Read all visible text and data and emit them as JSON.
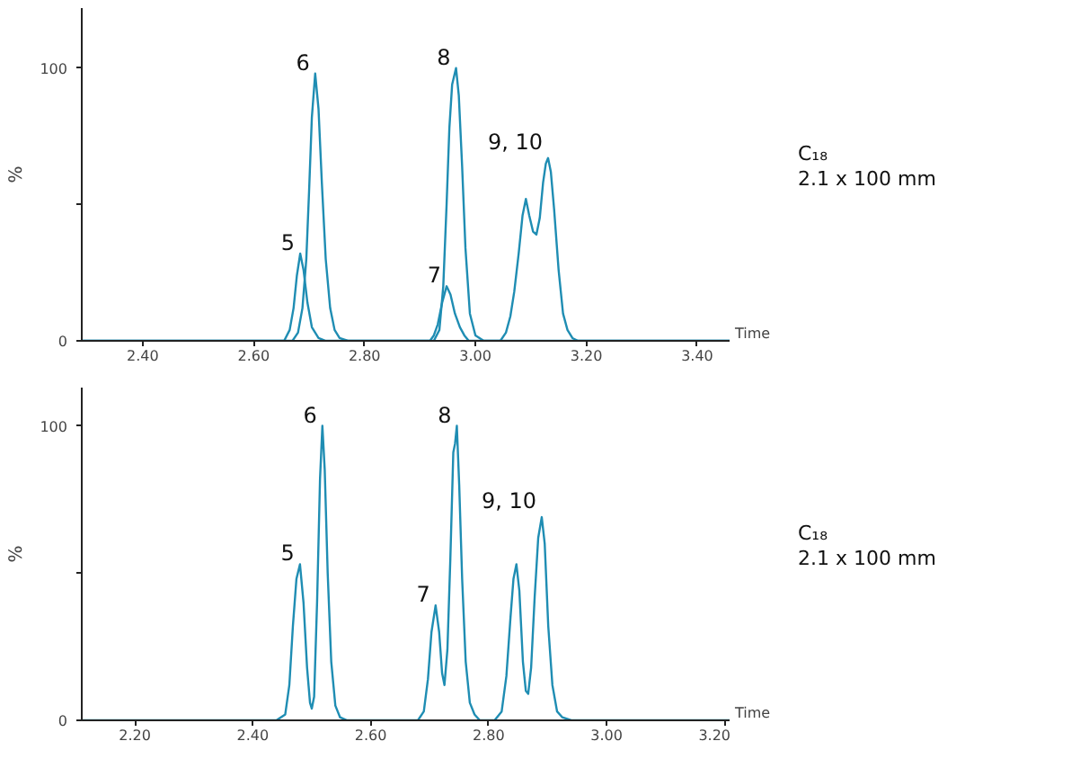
{
  "chart_data": [
    {
      "type": "line",
      "xlabel": "Time",
      "ylabel": "%",
      "xlim": [
        2.29,
        3.46
      ],
      "ylim": [
        0,
        122
      ],
      "xticks": [
        {
          "value": 2.4,
          "label": "2.40"
        },
        {
          "value": 2.6,
          "label": "2.60"
        },
        {
          "value": 2.8,
          "label": "2.80"
        },
        {
          "value": 3.0,
          "label": "3.00"
        },
        {
          "value": 3.2,
          "label": "3.20"
        },
        {
          "value": 3.4,
          "label": "3.40"
        }
      ],
      "yticks": [
        0,
        {
          "value": 50,
          "label": null
        },
        100
      ],
      "series": [
        {
          "color": "#1f8db3",
          "x": [
            2.29,
            2.6,
            2.655,
            2.665,
            2.672,
            2.678,
            2.684,
            2.69,
            2.697,
            2.705,
            2.717,
            2.73,
            2.9,
            2.918,
            2.925,
            2.932,
            2.94,
            2.948,
            2.955,
            2.963,
            2.972,
            2.98,
            2.988,
            3.0,
            3.045,
            3.055,
            3.063,
            3.07,
            3.078,
            3.085,
            3.091,
            3.097,
            3.104,
            3.11,
            3.116,
            3.122,
            3.127,
            3.131,
            3.136,
            3.142,
            3.15,
            3.158,
            3.166,
            3.175,
            3.185,
            3.46
          ],
          "values": [
            0,
            0,
            0,
            4,
            12,
            24,
            32,
            26,
            14,
            5,
            1,
            0,
            0,
            0,
            2,
            6,
            14,
            20,
            17,
            10,
            5,
            2,
            0,
            0,
            0,
            3,
            9,
            18,
            32,
            46,
            52,
            46,
            40,
            39,
            45,
            58,
            65,
            67,
            62,
            48,
            26,
            10,
            4,
            1,
            0,
            0
          ]
        },
        {
          "color": "#1f8db3",
          "x": [
            2.29,
            2.67,
            2.68,
            2.688,
            2.695,
            2.7,
            2.705,
            2.711,
            2.717,
            2.723,
            2.73,
            2.738,
            2.746,
            2.755,
            2.77,
            2.925,
            2.935,
            2.942,
            2.948,
            2.953,
            2.958,
            2.965,
            2.97,
            2.976,
            2.982,
            2.99,
            3.0,
            3.015,
            3.46
          ],
          "values": [
            0,
            0,
            3,
            12,
            30,
            55,
            82,
            98,
            85,
            58,
            30,
            12,
            4,
            1,
            0,
            0,
            4,
            20,
            50,
            78,
            94,
            100,
            90,
            64,
            34,
            10,
            2,
            0,
            0
          ]
        }
      ],
      "annotations": [
        {
          "text": "5",
          "x": 2.684,
          "y": 32
        },
        {
          "text": "6",
          "x": 2.711,
          "y": 98
        },
        {
          "text": "7",
          "x": 2.948,
          "y": 20
        },
        {
          "text": "8",
          "x": 2.965,
          "y": 100
        },
        {
          "text": "9, 10",
          "x": 3.131,
          "y": 67
        },
        "C₁₈",
        "2.1 x 100 mm"
      ]
    },
    {
      "type": "line",
      "xlabel": "Time",
      "ylabel": "%",
      "xlim": [
        2.11,
        3.21
      ],
      "ylim": [
        0,
        113
      ],
      "xticks": [
        {
          "value": 2.2,
          "label": "2.20"
        },
        {
          "value": 2.4,
          "label": "2.40"
        },
        {
          "value": 2.6,
          "label": "2.60"
        },
        {
          "value": 2.8,
          "label": "2.80"
        },
        {
          "value": 3.0,
          "label": "3.00"
        },
        {
          "value": 3.2,
          "label": "3.20"
        }
      ],
      "yticks": [
        0,
        {
          "value": 50,
          "label": null
        },
        100
      ],
      "series": [
        {
          "color": "#1f8db3",
          "x": [
            2.11,
            2.44,
            2.455,
            2.462,
            2.468,
            2.474,
            2.48,
            2.486,
            2.492,
            2.497,
            2.5,
            2.504,
            2.509,
            2.514,
            2.518,
            2.522,
            2.527,
            2.533,
            2.54,
            2.548,
            2.56,
            2.68,
            2.69,
            2.697,
            2.703,
            2.71,
            2.716,
            2.721,
            2.725,
            2.73,
            2.735,
            2.74,
            2.743,
            2.746,
            2.75,
            2.755,
            2.761,
            2.768,
            2.776,
            2.785,
            2.81,
            2.822,
            2.83,
            2.837,
            2.842,
            2.847,
            2.852,
            2.858,
            2.863,
            2.867,
            2.872,
            2.878,
            2.884,
            2.89,
            2.895,
            2.901,
            2.908,
            2.916,
            2.925,
            2.94,
            3.21
          ],
          "values": [
            0,
            0,
            2,
            12,
            32,
            48,
            53,
            40,
            18,
            6,
            4,
            8,
            40,
            82,
            100,
            85,
            50,
            20,
            5,
            1,
            0,
            0,
            3,
            14,
            30,
            39,
            30,
            16,
            12,
            24,
            55,
            91,
            94,
            100,
            80,
            48,
            20,
            6,
            2,
            0,
            0,
            3,
            15,
            35,
            48,
            53,
            44,
            20,
            10,
            9,
            18,
            42,
            62,
            69,
            60,
            32,
            12,
            3,
            1,
            0,
            0
          ]
        }
      ],
      "annotations": [
        {
          "text": "5",
          "x": 2.48,
          "y": 53
        },
        {
          "text": "6",
          "x": 2.518,
          "y": 100
        },
        {
          "text": "7",
          "x": 2.71,
          "y": 39
        },
        {
          "text": "8",
          "x": 2.746,
          "y": 100
        },
        {
          "text": "9, 10",
          "x": 2.89,
          "y": 69
        },
        "C₁₈",
        "2.1 x 100 mm"
      ]
    }
  ]
}
